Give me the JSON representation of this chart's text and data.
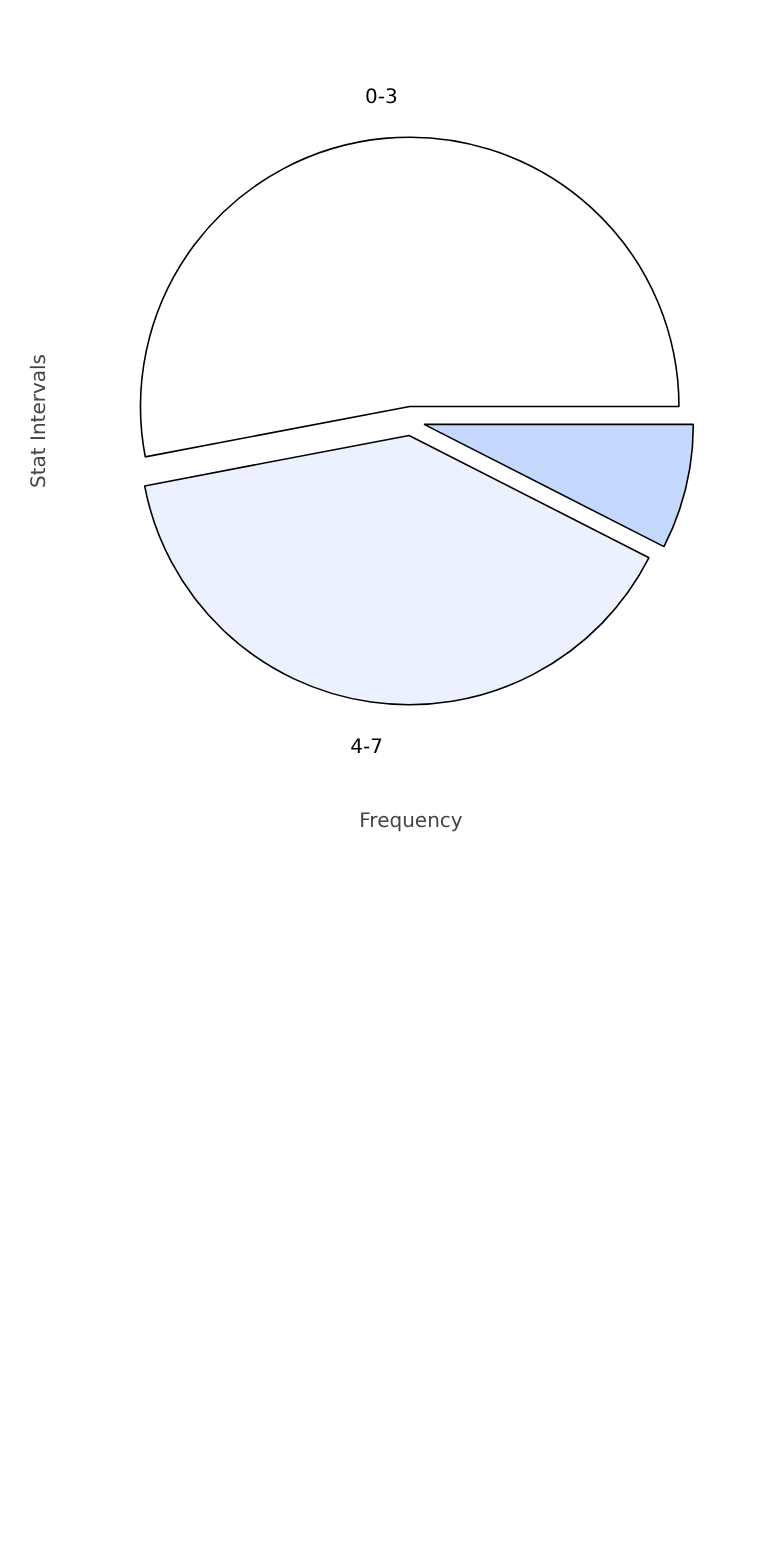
{
  "chart_data": {
    "type": "pie",
    "xlabel": "Frequency",
    "ylabel": "Stat Intervals",
    "categories": [
      "0-3",
      "4-7",
      null
    ],
    "values": [
      53,
      39.5,
      7.5
    ],
    "colors": [
      "#ffffff",
      "#ebf1fe",
      "#c5d9ff"
    ]
  }
}
